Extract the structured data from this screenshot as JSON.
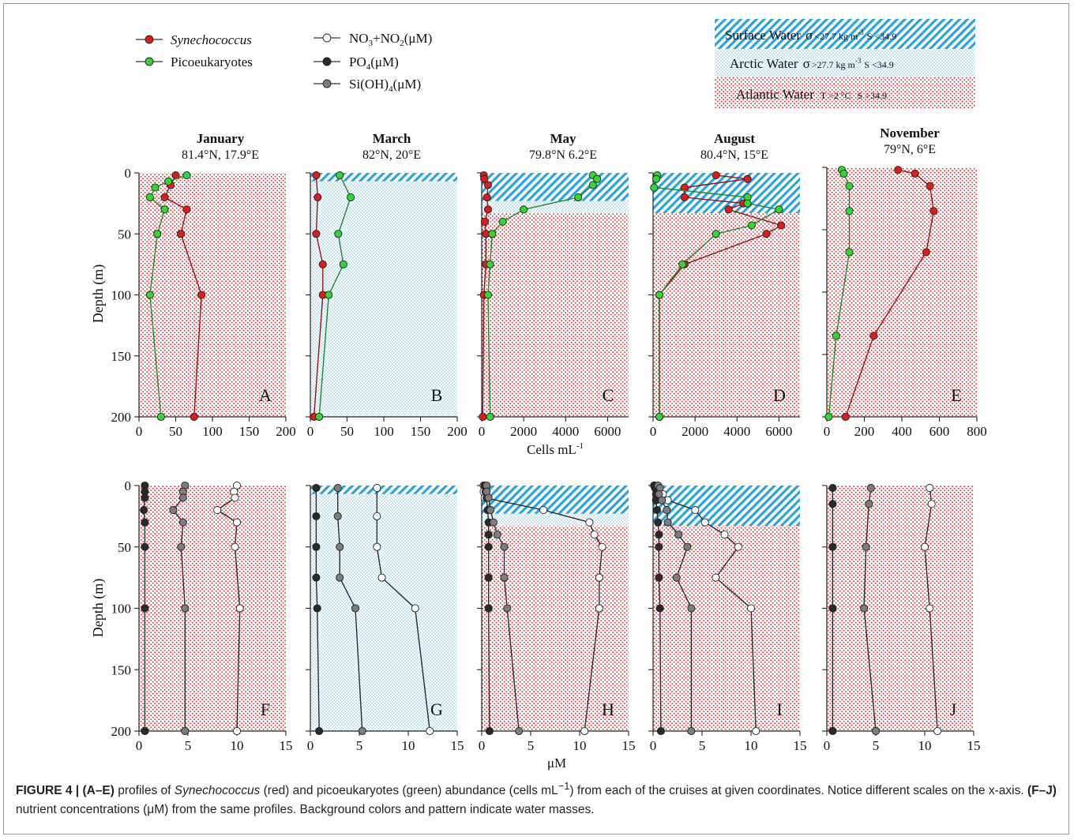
{
  "legend": {
    "synechococcus": "Synechococcus",
    "picoeukaryotes": "Picoeukaryotes",
    "no3_main": "NO",
    "no3_sub1": "3",
    "no3_mid": "+NO",
    "no3_sub2": "2",
    "no3_unit": "(μM)",
    "po4_main": "PO",
    "po4_sub": "4",
    "po4_unit": "(μM)",
    "si_main": "Si(OH)",
    "si_sub": "4",
    "si_unit": "(μM)"
  },
  "water_masses": {
    "surface_name": "Surface Water",
    "surface_sigma": "σ",
    "surface_sigma_val": "<27.7 kg m",
    "surface_sigma_exp": "-3",
    "surface_s": "S <34.9",
    "arctic_name": "Arctic Water",
    "arctic_sigma": "σ",
    "arctic_sigma_val": ">27.7 kg m",
    "arctic_sigma_exp": "-3",
    "arctic_s": "S <34.9",
    "atlantic_name": "Atlantic Water",
    "atlantic_t": "T >2 °C",
    "atlantic_s": "S >34.9"
  },
  "axes": {
    "y_label": "Depth (m)",
    "y_ticks": [
      "0",
      "50",
      "100",
      "150",
      "200"
    ],
    "top_x_label": "Cells mL",
    "top_x_label_exp": "-1",
    "bottom_x_label": "μM"
  },
  "colors": {
    "synechococcus": "#dd1c1c",
    "picoeukaryotes": "#33d633",
    "no3": "#ffffff",
    "po4": "#2a2a2a",
    "si": "#7d7d7d",
    "surface": "#29a3de",
    "arctic": "#7cc6ee",
    "atlantic": "#e0343c"
  },
  "caption": {
    "label": "FIGURE 4 |",
    "range1": "(A–E)",
    "text1a": " profiles of ",
    "syn_italic": "Synechococcus",
    "text1b": " (red) and picoeukaryotes (green) abundance (cells mL",
    "sup": "−1",
    "text1c": ") from each of the cruises at given coordinates. Notice different scales on the x-axis. ",
    "range2": "(F–J)",
    "text2": " nutrient concentrations (μM) from the same profiles. Background colors and pattern indicate water masses."
  },
  "chart_data": [
    {
      "type": "line",
      "panel": "A",
      "title": "January",
      "subtitle": "81.4°N, 17.9°E",
      "xlim": [
        0,
        200
      ],
      "xticks": [
        "0",
        "50",
        "100",
        "150",
        "200"
      ],
      "ylim": [
        200,
        0
      ],
      "water_masses": [
        {
          "name": "Atlantic Water",
          "from": 0,
          "to": 200
        }
      ],
      "series": [
        {
          "name": "Synechococcus",
          "x": [
            50,
            43,
            35,
            65,
            57,
            85,
            75
          ],
          "y": [
            2,
            10,
            20,
            30,
            50,
            100,
            200
          ]
        },
        {
          "name": "Picoeukaryotes",
          "x": [
            65,
            40,
            22,
            15,
            35,
            25,
            15,
            30
          ],
          "y": [
            2,
            7,
            12,
            20,
            30,
            50,
            100,
            200
          ]
        }
      ]
    },
    {
      "type": "line",
      "panel": "B",
      "title": "March",
      "subtitle": "82°N, 20°E",
      "xlim": [
        0,
        200
      ],
      "xticks": [
        "0",
        "50",
        "100",
        "150",
        "200"
      ],
      "ylim": [
        200,
        0
      ],
      "water_masses": [
        {
          "name": "Surface Water",
          "from": 0,
          "to": 7
        },
        {
          "name": "Arctic Water",
          "from": 7,
          "to": 200
        }
      ],
      "series": [
        {
          "name": "Synechococcus",
          "x": [
            8,
            10,
            8,
            17,
            17,
            5
          ],
          "y": [
            2,
            20,
            50,
            75,
            100,
            200
          ]
        },
        {
          "name": "Picoeukaryotes",
          "x": [
            40,
            55,
            38,
            45,
            25,
            12
          ],
          "y": [
            2,
            20,
            50,
            75,
            100,
            200
          ]
        }
      ]
    },
    {
      "type": "line",
      "panel": "C",
      "title": "May",
      "subtitle": "79.8°N  6.2°E",
      "xlim": [
        0,
        7000
      ],
      "xticks": [
        "0",
        "2000",
        "4000",
        "6000"
      ],
      "ylim": [
        200,
        0
      ],
      "water_masses": [
        {
          "name": "Surface Water",
          "from": 0,
          "to": 23
        },
        {
          "name": "Arctic Water",
          "from": 23,
          "to": 33
        },
        {
          "name": "Atlantic Water",
          "from": 33,
          "to": 200
        }
      ],
      "series": [
        {
          "name": "Synechococcus",
          "x": [
            100,
            120,
            300,
            250,
            300,
            150,
            200,
            200,
            100,
            50
          ],
          "y": [
            2,
            5,
            10,
            20,
            30,
            40,
            50,
            75,
            100,
            200
          ]
        },
        {
          "name": "Picoeukaryotes",
          "x": [
            5300,
            5500,
            5300,
            4600,
            2000,
            1000,
            500,
            400,
            300,
            400
          ],
          "y": [
            2,
            5,
            10,
            20,
            30,
            40,
            50,
            75,
            100,
            200
          ]
        }
      ]
    },
    {
      "type": "line",
      "panel": "D",
      "title": "August",
      "subtitle": "80.4°N, 15°E",
      "xlim": [
        0,
        7000
      ],
      "xticks": [
        "0",
        "2000",
        "4000",
        "6000"
      ],
      "ylim": [
        200,
        0
      ],
      "water_masses": [
        {
          "name": "Surface Water",
          "from": 0,
          "to": 33
        },
        {
          "name": "Atlantic Water",
          "from": 33,
          "to": 200
        }
      ],
      "series": [
        {
          "name": "Synechococcus",
          "x": [
            3000,
            4500,
            1500,
            1500,
            4300,
            3600,
            6100,
            5400,
            1500,
            300,
            300
          ],
          "y": [
            2,
            5,
            12,
            20,
            25,
            30,
            43,
            50,
            75,
            100,
            200
          ]
        },
        {
          "name": "Picoeukaryotes",
          "x": [
            200,
            150,
            50,
            4500,
            4500,
            6000,
            4700,
            3000,
            1400,
            300,
            300
          ],
          "y": [
            2,
            5,
            12,
            20,
            25,
            30,
            43,
            50,
            75,
            100,
            200
          ]
        }
      ]
    },
    {
      "type": "line",
      "panel": "E",
      "title": "November",
      "subtitle": "79°N, 6°E",
      "xlim": [
        0,
        800
      ],
      "xticks": [
        "0",
        "200",
        "400",
        "600",
        "800"
      ],
      "ylim": [
        200,
        0
      ],
      "water_masses": [
        {
          "name": "Atlantic Water",
          "from": 0,
          "to": 200
        }
      ],
      "series": [
        {
          "name": "Synechococcus",
          "x": [
            380,
            470,
            550,
            570,
            530,
            250,
            100
          ],
          "y": [
            2,
            5,
            15,
            35,
            68,
            135,
            200
          ]
        },
        {
          "name": "Picoeukaryotes",
          "x": [
            80,
            90,
            120,
            120,
            120,
            50,
            10
          ],
          "y": [
            2,
            5,
            15,
            35,
            68,
            135,
            200
          ]
        }
      ]
    },
    {
      "type": "line",
      "panel": "F",
      "xlim": [
        0,
        15
      ],
      "xticks": [
        "0",
        "5",
        "10",
        "15"
      ],
      "ylim": [
        200,
        0
      ],
      "water_masses": [
        {
          "name": "Atlantic Water",
          "from": 0,
          "to": 200
        }
      ],
      "series": [
        {
          "name": "NO3+NO2(μM)",
          "x": [
            10,
            9.7,
            9.8,
            8,
            10,
            9.8,
            10.3,
            10
          ],
          "y": [
            0,
            5,
            10,
            20,
            30,
            50,
            100,
            200
          ]
        },
        {
          "name": "PO4(μM)",
          "x": [
            0.6,
            0.6,
            0.6,
            0.5,
            0.6,
            0.6,
            0.6,
            0.6
          ],
          "y": [
            0,
            5,
            10,
            20,
            30,
            50,
            100,
            200
          ]
        },
        {
          "name": "Si(OH)4(μM)",
          "x": [
            4.7,
            4.5,
            4.5,
            3.5,
            4.5,
            4.3,
            4.7,
            4.7
          ],
          "y": [
            0,
            5,
            10,
            20,
            30,
            50,
            100,
            200
          ]
        }
      ]
    },
    {
      "type": "line",
      "panel": "G",
      "xlim": [
        0,
        15
      ],
      "xticks": [
        "0",
        "5",
        "10",
        "15"
      ],
      "ylim": [
        200,
        0
      ],
      "water_masses": [
        {
          "name": "Surface Water",
          "from": 0,
          "to": 7
        },
        {
          "name": "Arctic Water",
          "from": 7,
          "to": 200
        }
      ],
      "series": [
        {
          "name": "NO3+NO2(μM)",
          "x": [
            6.8,
            6.8,
            6.8,
            7.3,
            10.7,
            12.2
          ],
          "y": [
            2,
            25,
            50,
            75,
            100,
            200
          ]
        },
        {
          "name": "PO4(μM)",
          "x": [
            0.6,
            0.6,
            0.6,
            0.6,
            0.7,
            0.9
          ],
          "y": [
            2,
            25,
            50,
            75,
            100,
            200
          ]
        },
        {
          "name": "Si(OH)4(μM)",
          "x": [
            2.8,
            2.8,
            3,
            3,
            4.6,
            5.3
          ],
          "y": [
            2,
            25,
            50,
            75,
            100,
            200
          ]
        }
      ]
    },
    {
      "type": "line",
      "panel": "H",
      "xlim": [
        0,
        15
      ],
      "xticks": [
        "0",
        "5",
        "10",
        "15"
      ],
      "ylim": [
        200,
        0
      ],
      "water_masses": [
        {
          "name": "Surface Water",
          "from": 0,
          "to": 23
        },
        {
          "name": "Arctic Water",
          "from": 23,
          "to": 33
        },
        {
          "name": "Atlantic Water",
          "from": 33,
          "to": 200
        }
      ],
      "series": [
        {
          "name": "NO3+NO2(μM)",
          "x": [
            0.2,
            0.2,
            0.3,
            6.3,
            11,
            11.5,
            12.3,
            12,
            12,
            10.5
          ],
          "y": [
            0,
            5,
            10,
            20,
            30,
            40,
            50,
            75,
            100,
            200
          ]
        },
        {
          "name": "PO4(μM)",
          "x": [
            0.3,
            0.4,
            0.5,
            0.6,
            0.7,
            0.7,
            0.7,
            0.7,
            0.7,
            0.8
          ],
          "y": [
            0,
            5,
            10,
            20,
            30,
            40,
            50,
            75,
            100,
            200
          ]
        },
        {
          "name": "Si(OH)4(μM)",
          "x": [
            0.5,
            0.5,
            0.7,
            0.9,
            1.2,
            1.6,
            2.3,
            2.3,
            2.6,
            3.8
          ],
          "y": [
            0,
            5,
            10,
            20,
            30,
            40,
            50,
            75,
            100,
            200
          ]
        }
      ]
    },
    {
      "type": "line",
      "panel": "I",
      "xlim": [
        0,
        15
      ],
      "xticks": [
        "0",
        "5",
        "10",
        "15"
      ],
      "ylim": [
        200,
        0
      ],
      "water_masses": [
        {
          "name": "Surface Water",
          "from": 0,
          "to": 33
        },
        {
          "name": "Atlantic Water",
          "from": 33,
          "to": 200
        }
      ],
      "series": [
        {
          "name": "NO3+NO2(μM)",
          "x": [
            0.2,
            0.5,
            1,
            1.5,
            4.3,
            5.3,
            7.3,
            8.7,
            6.4,
            10,
            10.5
          ],
          "y": [
            0,
            2,
            7,
            12,
            20,
            30,
            40,
            50,
            75,
            100,
            200
          ]
        },
        {
          "name": "PO4(μM)",
          "x": [
            0.1,
            0.2,
            0.3,
            0.3,
            0.4,
            0.5,
            0.6,
            0.6,
            0.6,
            0.7,
            0.8
          ],
          "y": [
            0,
            2,
            7,
            12,
            20,
            30,
            40,
            50,
            75,
            100,
            200
          ]
        },
        {
          "name": "Si(OH)4(μM)",
          "x": [
            0.5,
            0.7,
            0.6,
            0.9,
            1.4,
            1.5,
            2.6,
            3.5,
            2.4,
            3.9,
            3.9
          ],
          "y": [
            0,
            2,
            7,
            12,
            20,
            30,
            40,
            50,
            75,
            100,
            200
          ]
        }
      ]
    },
    {
      "type": "line",
      "panel": "J",
      "xlim": [
        0,
        15
      ],
      "xticks": [
        "0",
        "5",
        "10",
        "15"
      ],
      "ylim": [
        200,
        0
      ],
      "water_masses": [
        {
          "name": "Atlantic Water",
          "from": 0,
          "to": 200
        }
      ],
      "series": [
        {
          "name": "NO3+NO2(μM)",
          "x": [
            10.5,
            10.7,
            10,
            10.5,
            11.3
          ],
          "y": [
            2,
            15,
            50,
            100,
            200
          ]
        },
        {
          "name": "PO4(μM)",
          "x": [
            0.6,
            0.6,
            0.6,
            0.6,
            0.6
          ],
          "y": [
            2,
            15,
            50,
            100,
            200
          ]
        },
        {
          "name": "Si(OH)4(μM)",
          "x": [
            4.5,
            4.3,
            4,
            3.8,
            5
          ],
          "y": [
            2,
            15,
            50,
            100,
            200
          ]
        }
      ]
    }
  ]
}
